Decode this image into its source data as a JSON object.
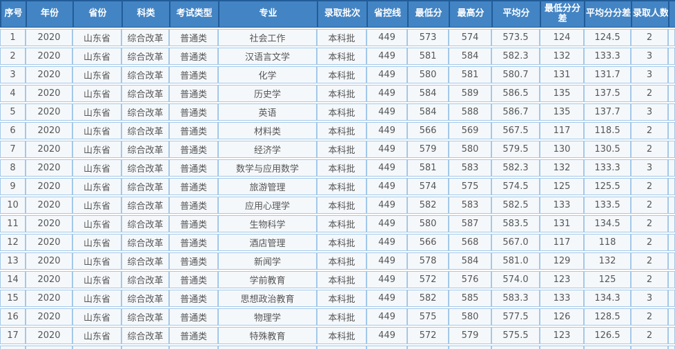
{
  "colors": {
    "header_bg": "#4384C4",
    "header_border": "#215C99",
    "header_text": "#FFFFFF",
    "row_bg": "#F5F8FB",
    "grid_line": "#A2C8E8",
    "cell_text": "#555555"
  },
  "table": {
    "columns": [
      {
        "key": "index",
        "label": "序号"
      },
      {
        "key": "year",
        "label": "年份"
      },
      {
        "key": "province",
        "label": "省份"
      },
      {
        "key": "category",
        "label": "科类"
      },
      {
        "key": "exam_type",
        "label": "考试类型"
      },
      {
        "key": "major",
        "label": "专业"
      },
      {
        "key": "batch",
        "label": "录取批次"
      },
      {
        "key": "control_line",
        "label": "省控线"
      },
      {
        "key": "min_score",
        "label": "最低分"
      },
      {
        "key": "max_score",
        "label": "最高分"
      },
      {
        "key": "avg_score",
        "label": "平均分"
      },
      {
        "key": "min_diff",
        "label": "最低分分差"
      },
      {
        "key": "avg_diff",
        "label": "平均分分差"
      },
      {
        "key": "admitted",
        "label": "录取人数"
      }
    ],
    "rows": [
      [
        "1",
        "2020",
        "山东省",
        "综合改革",
        "普通类",
        "社会工作",
        "本科批",
        "449",
        "573",
        "574",
        "573.5",
        "124",
        "124.5",
        "2"
      ],
      [
        "2",
        "2020",
        "山东省",
        "综合改革",
        "普通类",
        "汉语言文学",
        "本科批",
        "449",
        "581",
        "584",
        "582.3",
        "132",
        "133.3",
        "3"
      ],
      [
        "3",
        "2020",
        "山东省",
        "综合改革",
        "普通类",
        "化学",
        "本科批",
        "449",
        "580",
        "581",
        "580.7",
        "131",
        "131.7",
        "3"
      ],
      [
        "4",
        "2020",
        "山东省",
        "综合改革",
        "普通类",
        "历史学",
        "本科批",
        "449",
        "584",
        "589",
        "586.5",
        "135",
        "137.5",
        "2"
      ],
      [
        "5",
        "2020",
        "山东省",
        "综合改革",
        "普通类",
        "英语",
        "本科批",
        "449",
        "584",
        "588",
        "586.7",
        "135",
        "137.7",
        "3"
      ],
      [
        "6",
        "2020",
        "山东省",
        "综合改革",
        "普通类",
        "材料类",
        "本科批",
        "449",
        "566",
        "569",
        "567.5",
        "117",
        "118.5",
        "2"
      ],
      [
        "7",
        "2020",
        "山东省",
        "综合改革",
        "普通类",
        "经济学",
        "本科批",
        "449",
        "579",
        "580",
        "579.5",
        "130",
        "130.5",
        "2"
      ],
      [
        "8",
        "2020",
        "山东省",
        "综合改革",
        "普通类",
        "数学与应用数学",
        "本科批",
        "449",
        "581",
        "583",
        "582.3",
        "132",
        "133.3",
        "3"
      ],
      [
        "9",
        "2020",
        "山东省",
        "综合改革",
        "普通类",
        "旅游管理",
        "本科批",
        "449",
        "574",
        "575",
        "574.5",
        "125",
        "125.5",
        "2"
      ],
      [
        "10",
        "2020",
        "山东省",
        "综合改革",
        "普通类",
        "应用心理学",
        "本科批",
        "449",
        "582",
        "583",
        "582.5",
        "133",
        "133.5",
        "2"
      ],
      [
        "11",
        "2020",
        "山东省",
        "综合改革",
        "普通类",
        "生物科学",
        "本科批",
        "449",
        "580",
        "587",
        "583.5",
        "131",
        "134.5",
        "2"
      ],
      [
        "12",
        "2020",
        "山东省",
        "综合改革",
        "普通类",
        "酒店管理",
        "本科批",
        "449",
        "566",
        "568",
        "567.0",
        "117",
        "118",
        "2"
      ],
      [
        "13",
        "2020",
        "山东省",
        "综合改革",
        "普通类",
        "新闻学",
        "本科批",
        "449",
        "578",
        "584",
        "581.0",
        "129",
        "132",
        "2"
      ],
      [
        "14",
        "2020",
        "山东省",
        "综合改革",
        "普通类",
        "学前教育",
        "本科批",
        "449",
        "572",
        "576",
        "574.0",
        "123",
        "125",
        "2"
      ],
      [
        "15",
        "2020",
        "山东省",
        "综合改革",
        "普通类",
        "思想政治教育",
        "本科批",
        "449",
        "582",
        "585",
        "583.3",
        "133",
        "134.3",
        "3"
      ],
      [
        "16",
        "2020",
        "山东省",
        "综合改革",
        "普通类",
        "物理学",
        "本科批",
        "449",
        "575",
        "580",
        "577.5",
        "126",
        "128.5",
        "2"
      ],
      [
        "17",
        "2020",
        "山东省",
        "综合改革",
        "普通类",
        "特殊教育",
        "本科批",
        "449",
        "572",
        "579",
        "575.5",
        "123",
        "126.5",
        "2"
      ]
    ]
  }
}
